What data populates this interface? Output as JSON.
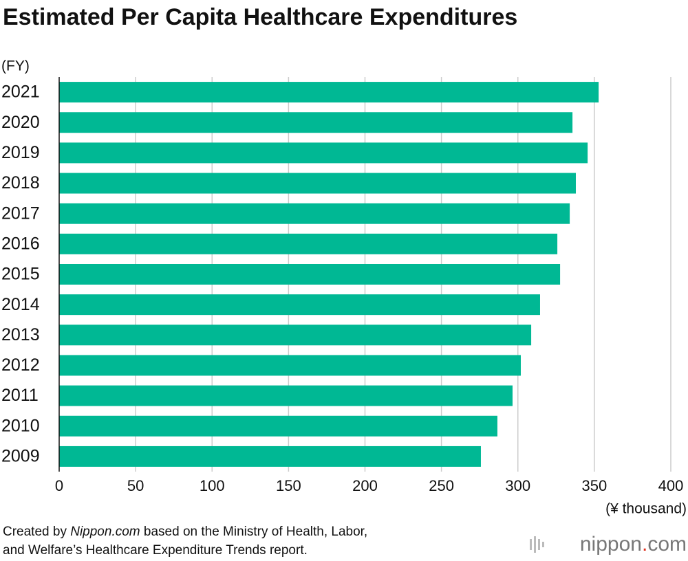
{
  "chart_data": {
    "type": "hbar",
    "title": "Estimated Per Capita Healthcare Expenditures",
    "y_label": "(FY)",
    "x_label": "(¥ thousand)",
    "categories": [
      "2021",
      "2020",
      "2019",
      "2018",
      "2017",
      "2016",
      "2015",
      "2014",
      "2013",
      "2012",
      "2011",
      "2010",
      "2009"
    ],
    "values": [
      352.8,
      335.7,
      345.6,
      337.9,
      333.9,
      325.8,
      327.6,
      314.5,
      308.7,
      301.9,
      296.5,
      286.6,
      275.8
    ],
    "color": "#00b894",
    "xlim": [
      0,
      400
    ],
    "xticks": [
      0,
      50,
      100,
      150,
      200,
      250,
      300,
      350,
      400
    ],
    "grid": true,
    "source": [
      "Created by ",
      "Nippon.com",
      " based on the Ministry of Health, Labor,",
      "and Welfare’s Healthcare Expenditure Trends report."
    ],
    "logo": [
      "nippon",
      ".",
      "com"
    ]
  }
}
